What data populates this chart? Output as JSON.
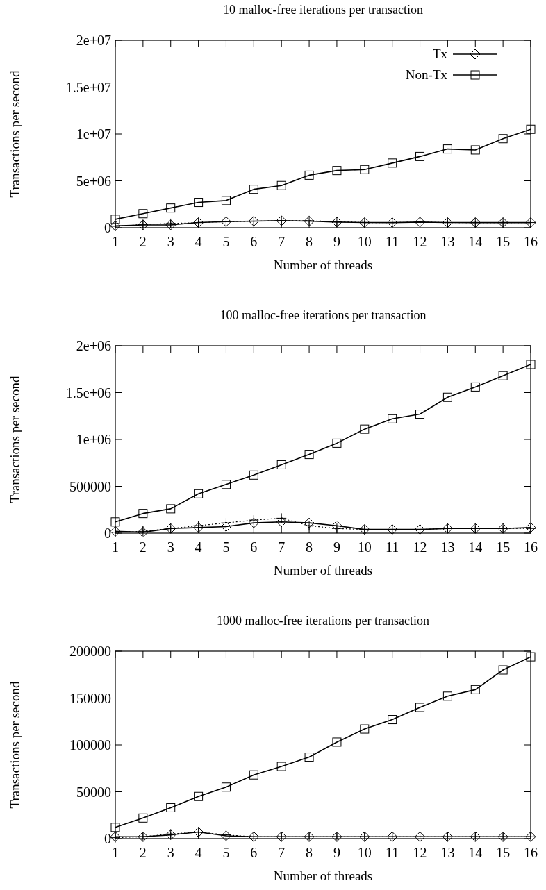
{
  "chart_data": [
    {
      "type": "line",
      "title": "10 malloc-free iterations per transaction",
      "xlabel": "Number of threads",
      "ylabel": "Transactions per second",
      "x": [
        1,
        2,
        3,
        4,
        5,
        6,
        7,
        8,
        9,
        10,
        11,
        12,
        13,
        14,
        15,
        16
      ],
      "xlim": [
        1,
        16
      ],
      "xticks": [
        1,
        2,
        3,
        4,
        5,
        6,
        7,
        8,
        9,
        10,
        11,
        12,
        13,
        14,
        15,
        16
      ],
      "ylim": [
        0,
        20000000
      ],
      "yticks": [
        0,
        {
          "value": 5000000,
          "label": "5e+06"
        },
        {
          "value": 10000000,
          "label": "1e+07"
        },
        {
          "value": 15000000,
          "label": "1.5e+07"
        },
        {
          "value": 20000000,
          "label": "2e+07"
        }
      ],
      "legend": "top right",
      "series": [
        {
          "name": "Tx",
          "color": "#000000",
          "marker": "diamond",
          "line_style": "solid",
          "values": [
            200000,
            300000,
            300000,
            550000,
            650000,
            700000,
            750000,
            700000,
            600000,
            550000,
            550000,
            600000,
            550000,
            550000,
            550000,
            550000
          ]
        },
        {
          "color": "#000000",
          "marker": "cross",
          "line_style": "dotted",
          "values": [
            150000,
            350000,
            450000,
            550000,
            650000,
            700000,
            750000,
            750000,
            650000,
            550000,
            550000,
            600000,
            550000,
            550000,
            550000,
            550000
          ]
        },
        {
          "name": "Non-Tx",
          "color": "#000000",
          "marker": "square",
          "line_style": "solid",
          "values": [
            900000,
            1500000,
            2100000,
            2700000,
            2900000,
            4100000,
            4500000,
            5600000,
            6100000,
            6200000,
            6900000,
            7600000,
            8400000,
            8300000,
            9500000,
            10500000
          ]
        }
      ]
    },
    {
      "type": "line",
      "title": "100 malloc-free iterations per transaction",
      "xlabel": "Number of threads",
      "ylabel": "Transactions per second",
      "x": [
        1,
        2,
        3,
        4,
        5,
        6,
        7,
        8,
        9,
        10,
        11,
        12,
        13,
        14,
        15,
        16
      ],
      "xlim": [
        1,
        16
      ],
      "xticks": [
        1,
        2,
        3,
        4,
        5,
        6,
        7,
        8,
        9,
        10,
        11,
        12,
        13,
        14,
        15,
        16
      ],
      "ylim": [
        0,
        2000000
      ],
      "yticks": [
        0,
        500000,
        {
          "value": 1000000,
          "label": "1e+06"
        },
        {
          "value": 1500000,
          "label": "1.5e+06"
        },
        {
          "value": 2000000,
          "label": "2e+06"
        }
      ],
      "series": [
        {
          "color": "#000000",
          "marker": "diamond",
          "line_style": "solid",
          "values": [
            20000,
            10000,
            50000,
            60000,
            70000,
            110000,
            120000,
            110000,
            80000,
            40000,
            40000,
            40000,
            50000,
            50000,
            50000,
            60000
          ]
        },
        {
          "color": "#000000",
          "marker": "cross",
          "line_style": "dotted",
          "values": [
            10000,
            20000,
            50000,
            80000,
            110000,
            140000,
            160000,
            80000,
            50000,
            40000,
            40000,
            40000,
            50000,
            50000,
            50000,
            50000
          ]
        },
        {
          "color": "#000000",
          "marker": "square",
          "line_style": "solid",
          "values": [
            120000,
            210000,
            260000,
            420000,
            520000,
            620000,
            730000,
            840000,
            960000,
            1110000,
            1220000,
            1270000,
            1450000,
            1560000,
            1680000,
            1800000
          ]
        }
      ]
    },
    {
      "type": "line",
      "title": "1000 malloc-free iterations per transaction",
      "xlabel": "Number of threads",
      "ylabel": "Transactions per second",
      "x": [
        1,
        2,
        3,
        4,
        5,
        6,
        7,
        8,
        9,
        10,
        11,
        12,
        13,
        14,
        15,
        16
      ],
      "xlim": [
        1,
        16
      ],
      "xticks": [
        1,
        2,
        3,
        4,
        5,
        6,
        7,
        8,
        9,
        10,
        11,
        12,
        13,
        14,
        15,
        16
      ],
      "ylim": [
        0,
        200000
      ],
      "yticks": [
        0,
        50000,
        100000,
        150000,
        200000
      ],
      "series": [
        {
          "color": "#000000",
          "marker": "diamond",
          "line_style": "solid",
          "values": [
            2000,
            2000,
            4000,
            7000,
            3000,
            2000,
            2000,
            2000,
            2000,
            2000,
            2000,
            2000,
            2000,
            2000,
            2000,
            2000
          ]
        },
        {
          "color": "#000000",
          "marker": "cross",
          "line_style": "dotted",
          "values": [
            1000,
            2000,
            5000,
            7000,
            4000,
            2000,
            2000,
            2000,
            2000,
            2000,
            2000,
            2000,
            2000,
            2000,
            2000,
            2000
          ]
        },
        {
          "color": "#000000",
          "marker": "square",
          "line_style": "solid",
          "values": [
            12000,
            22000,
            33000,
            45000,
            55000,
            68000,
            77000,
            87000,
            103000,
            117000,
            127000,
            140000,
            152000,
            159000,
            180000,
            194000
          ]
        }
      ]
    }
  ]
}
